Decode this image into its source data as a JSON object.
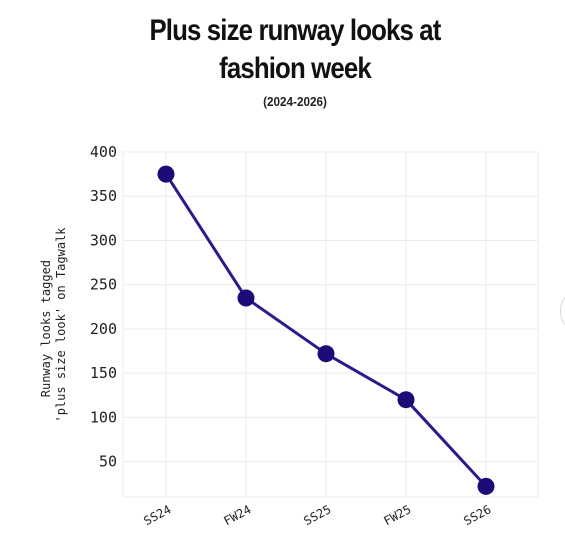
{
  "chart_data": {
    "type": "line",
    "title_line1": "Plus size runway looks at",
    "title_line2": "fashion week",
    "subtitle": "(2024-2026)",
    "ylabel_line1": "Runway looks tagged",
    "ylabel_line2": "'plus size look' on Tagwalk",
    "categories": [
      "SS24",
      "FW24",
      "SS25",
      "FW25",
      "SS26"
    ],
    "series": [
      {
        "values": [
          375,
          235,
          172,
          120,
          22
        ]
      }
    ],
    "yticks": [
      50,
      100,
      150,
      200,
      250,
      300,
      350,
      400
    ],
    "ylim": [
      10,
      400
    ],
    "grid": true,
    "line_color": "#2a1a8c",
    "marker_color": "#1c0a78",
    "grid_color": "#ececec"
  }
}
